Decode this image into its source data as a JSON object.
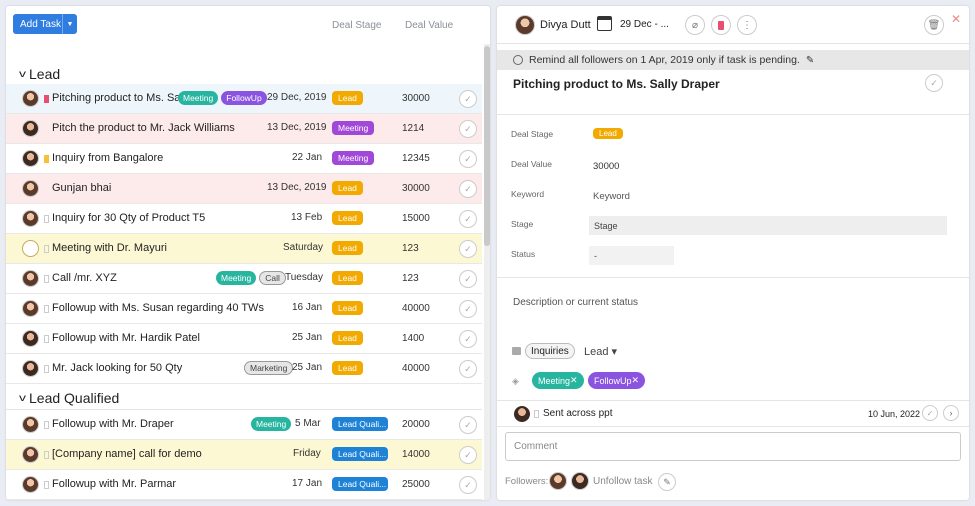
{
  "toolbar": {
    "add_task": "Add Task",
    "col_stage": "Deal Stage",
    "col_value": "Deal Value"
  },
  "groups": [
    {
      "label": "Lead"
    },
    {
      "label": "Lead Qualified"
    }
  ],
  "rows": [
    {
      "title": "Pitching product to Ms. Sall",
      "tags": [
        "Meeting",
        "FollowUp"
      ],
      "date": "29 Dec, 2019",
      "stage": "Lead",
      "value": "30000"
    },
    {
      "title": "Pitch the product to Mr. Jack Williams",
      "tags": [],
      "date": "13 Dec, 2019",
      "stage": "Meeting",
      "value": "1214"
    },
    {
      "title": "Inquiry from Bangalore",
      "tags": [],
      "date": "22 Jan",
      "stage": "Meeting",
      "value": "12345"
    },
    {
      "title": "Gunjan bhai",
      "tags": [],
      "date": "13 Dec, 2019",
      "stage": "Lead",
      "value": "30000"
    },
    {
      "title": "Inquiry for 30 Qty of Product T5",
      "tags": [],
      "date": "13 Feb",
      "stage": "Lead",
      "value": "15000"
    },
    {
      "title": "Meeting with Dr. Mayuri",
      "tags": [],
      "date": "Saturday",
      "stage": "Lead",
      "value": "123"
    },
    {
      "title": "Call /mr. XYZ",
      "tags": [
        "Meeting",
        "Call"
      ],
      "date": "Tuesday",
      "stage": "Lead",
      "value": "123"
    },
    {
      "title": "Followup with Ms. Susan regarding 40 TWs",
      "tags": [],
      "date": "16 Jan",
      "stage": "Lead",
      "value": "40000"
    },
    {
      "title": "Followup with Mr. Hardik Patel",
      "tags": [],
      "date": "25 Jan",
      "stage": "Lead",
      "value": "1400"
    },
    {
      "title": "Mr. Jack looking for 50 Qty",
      "tags": [
        "Marketing"
      ],
      "date": "25 Jan",
      "stage": "Lead",
      "value": "40000"
    },
    {
      "title": "Followup with Mr. Draper",
      "tags": [
        "Meeting"
      ],
      "date": "5 Mar",
      "stage": "Lead Quali...",
      "value": "20000"
    },
    {
      "title": "[Company name] call for demo",
      "tags": [],
      "date": "Friday",
      "stage": "Lead Quali...",
      "value": "14000"
    },
    {
      "title": "Followup with Mr. Parmar",
      "tags": [],
      "date": "17 Jan",
      "stage": "Lead Quali...",
      "value": "25000"
    }
  ],
  "detail": {
    "assignee": "Divya Dutt",
    "date_range": "29 Dec - ...",
    "reminder": "Remind all followers on 1 Apr, 2019 only if task is pending.",
    "title": "Pitching product to Ms. Sally Draper",
    "fields": {
      "deal_stage_label": "Deal Stage",
      "deal_stage_value": "Lead",
      "deal_value_label": "Deal Value",
      "deal_value_value": "30000",
      "keyword_label": "Keyword",
      "keyword_placeholder": "Keyword",
      "stage_label": "Stage",
      "stage_placeholder": "Stage",
      "status_label": "Status",
      "status_value": "-"
    },
    "description_placeholder": "Description or current status",
    "project": "Inquiries",
    "list": "Lead",
    "tags": [
      "Meeting",
      "FollowUp"
    ],
    "subtask": {
      "title": "Sent across ppt",
      "date": "10 Jun, 2022"
    },
    "comment_placeholder": "Comment",
    "followers_label": "Followers:",
    "unfollow": "Unfollow task"
  }
}
